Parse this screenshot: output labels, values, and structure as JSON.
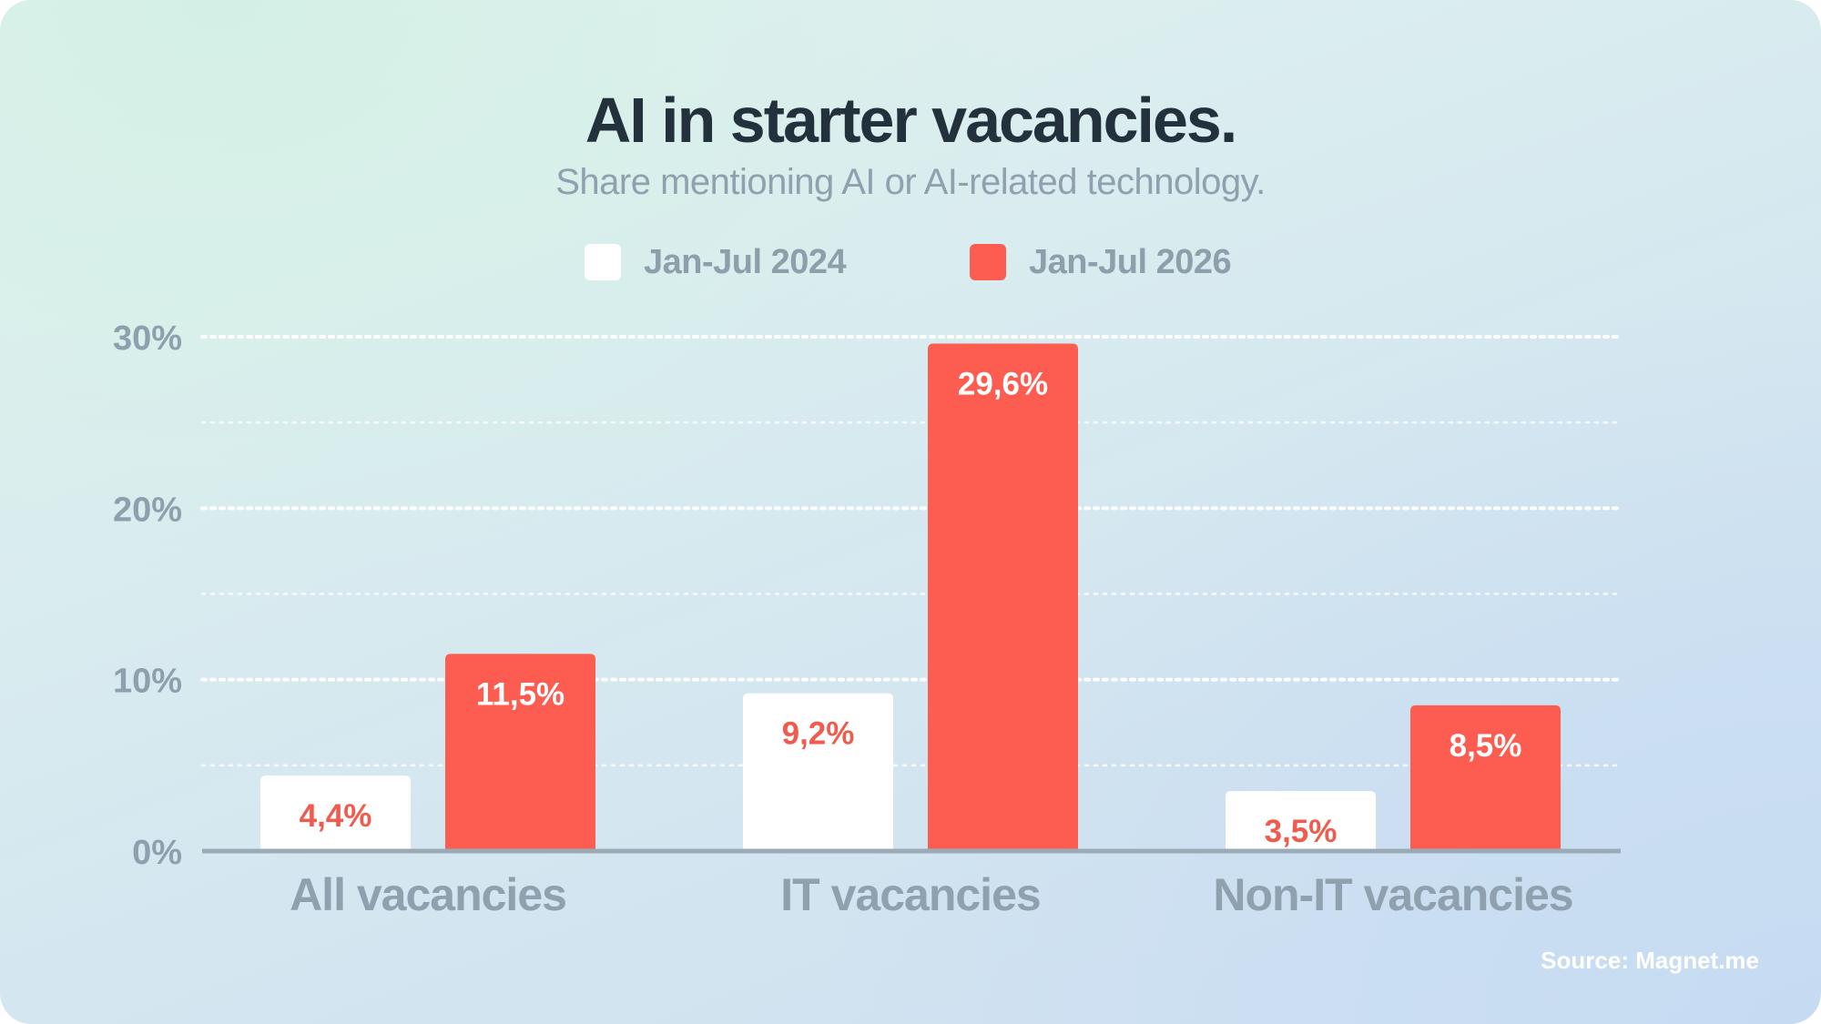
{
  "chart_data": {
    "type": "bar",
    "title": "AI in starter vacancies.",
    "subtitle": "Share mentioning AI or AI-related technology.",
    "categories": [
      "All vacancies",
      "IT vacancies",
      "Non-IT vacancies"
    ],
    "series": [
      {
        "name": "Jan-Jul 2024",
        "color": "#ffffff",
        "label_color": "#f15b4e",
        "values": [
          4.4,
          9.2,
          3.5
        ],
        "labels": [
          "4,4%",
          "9,2%",
          "3,5%"
        ]
      },
      {
        "name": "Jan-Jul 2026",
        "color": "#fd5c50",
        "label_color": "#ffffff",
        "values": [
          11.5,
          29.6,
          8.5
        ],
        "labels": [
          "11,5%",
          "29,6%",
          "8,5%"
        ]
      }
    ],
    "ylim": [
      0,
      30
    ],
    "yticks": [
      0,
      10,
      20,
      30
    ],
    "ytick_labels": [
      "0%",
      "10%",
      "20%",
      "30%"
    ],
    "grid": true,
    "legend_position": "top-center",
    "source": "Source: Magnet.me"
  }
}
